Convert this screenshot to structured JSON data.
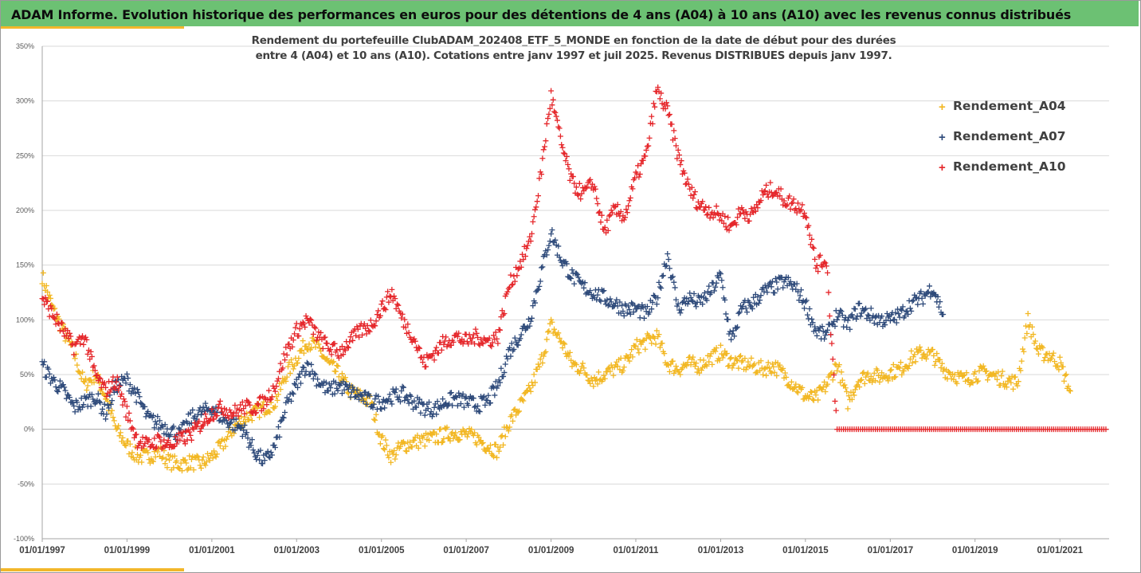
{
  "header": {
    "title": "ADAM Informe. Evolution historique des performances en euros pour des détentions de 4 ans (A04) à 10 ans (A10) avec les revenus connus distribués"
  },
  "colors": {
    "banner": "#6cc173",
    "accent": "#f2b72a",
    "grid": "#d9d9d9",
    "axis": "#a6a6a6"
  },
  "chart_data": {
    "type": "scatter",
    "title_lines": [
      "Rendement du portefeuille ClubADAM_202408_ETF_5_MONDE  en fonction de la date de début pour des durées",
      "entre 4 (A04) et 10 ans (A10). Cotations entre janv 1997 et juil 2025. Revenus DISTRIBUES depuis janv 1997."
    ],
    "xlabel": "",
    "ylabel": "",
    "x_range": [
      "1997-01-01",
      "2022-03-01"
    ],
    "ylim": [
      -100,
      350
    ],
    "y_ticks": [
      -100,
      -50,
      0,
      50,
      100,
      150,
      200,
      250,
      300,
      350
    ],
    "y_tick_labels": [
      "-100%",
      "-50%",
      "0%",
      "50%",
      "100%",
      "150%",
      "200%",
      "250%",
      "300%",
      "350%"
    ],
    "x_ticks": [
      "1997-01-01",
      "1999-01-01",
      "2001-01-01",
      "2003-01-01",
      "2005-01-01",
      "2007-01-01",
      "2009-01-01",
      "2011-01-01",
      "2013-01-01",
      "2015-01-01",
      "2017-01-01",
      "2019-01-01",
      "2021-01-01"
    ],
    "x_tick_labels": [
      "01/01/1997",
      "01/01/1999",
      "01/01/2001",
      "01/01/2003",
      "01/01/2005",
      "01/01/2007",
      "01/01/2009",
      "01/01/2011",
      "01/01/2013",
      "01/01/2015",
      "01/01/2017",
      "01/01/2019",
      "01/01/2021"
    ],
    "grid": true,
    "legend_position": "right",
    "marker": "+",
    "series": [
      {
        "name": "Rendement_A04",
        "color": "#f2b722",
        "points": [
          [
            "1997-01",
            140
          ],
          [
            "1997-04",
            110
          ],
          [
            "1997-07",
            90
          ],
          [
            "1997-10",
            70
          ],
          [
            "1998-01",
            40
          ],
          [
            "1998-04",
            50
          ],
          [
            "1998-07",
            30
          ],
          [
            "1998-10",
            0
          ],
          [
            "1999-01",
            -15
          ],
          [
            "1999-04",
            -25
          ],
          [
            "1999-07",
            -25
          ],
          [
            "1999-10",
            -20
          ],
          [
            "2000-01",
            -30
          ],
          [
            "2000-04",
            -32
          ],
          [
            "2000-07",
            -30
          ],
          [
            "2000-10",
            -32
          ],
          [
            "2001-01",
            -25
          ],
          [
            "2001-04",
            -15
          ],
          [
            "2001-07",
            0
          ],
          [
            "2001-10",
            10
          ],
          [
            "2002-01",
            15
          ],
          [
            "2002-04",
            20
          ],
          [
            "2002-07",
            25
          ],
          [
            "2002-10",
            50
          ],
          [
            "2003-01",
            65
          ],
          [
            "2003-04",
            80
          ],
          [
            "2003-07",
            75
          ],
          [
            "2003-10",
            60
          ],
          [
            "2004-01",
            50
          ],
          [
            "2004-04",
            35
          ],
          [
            "2004-07",
            30
          ],
          [
            "2004-10",
            25
          ],
          [
            "2005-01",
            -10
          ],
          [
            "2005-04",
            -25
          ],
          [
            "2005-07",
            -15
          ],
          [
            "2005-10",
            -12
          ],
          [
            "2006-01",
            -10
          ],
          [
            "2006-04",
            -8
          ],
          [
            "2006-07",
            -5
          ],
          [
            "2006-10",
            -3
          ],
          [
            "2007-01",
            -5
          ],
          [
            "2007-04",
            -8
          ],
          [
            "2007-07",
            -15
          ],
          [
            "2007-10",
            -20
          ],
          [
            "2008-01",
            5
          ],
          [
            "2008-04",
            20
          ],
          [
            "2008-07",
            35
          ],
          [
            "2008-10",
            60
          ],
          [
            "2009-01",
            95
          ],
          [
            "2009-04",
            80
          ],
          [
            "2009-07",
            60
          ],
          [
            "2009-10",
            55
          ],
          [
            "2010-01",
            45
          ],
          [
            "2010-04",
            50
          ],
          [
            "2010-07",
            55
          ],
          [
            "2010-10",
            60
          ],
          [
            "2011-01",
            75
          ],
          [
            "2011-04",
            80
          ],
          [
            "2011-07",
            85
          ],
          [
            "2011-10",
            60
          ],
          [
            "2012-01",
            55
          ],
          [
            "2012-04",
            60
          ],
          [
            "2012-07",
            58
          ],
          [
            "2012-10",
            65
          ],
          [
            "2013-01",
            70
          ],
          [
            "2013-04",
            62
          ],
          [
            "2013-07",
            60
          ],
          [
            "2013-10",
            58
          ],
          [
            "2014-01",
            55
          ],
          [
            "2014-04",
            58
          ],
          [
            "2014-07",
            50
          ],
          [
            "2014-10",
            40
          ],
          [
            "2015-01",
            30
          ],
          [
            "2015-04",
            28
          ],
          [
            "2015-07",
            40
          ],
          [
            "2015-10",
            60
          ],
          [
            "2016-01",
            25
          ],
          [
            "2016-04",
            45
          ],
          [
            "2016-07",
            50
          ],
          [
            "2016-10",
            48
          ],
          [
            "2017-01",
            52
          ],
          [
            "2017-04",
            55
          ],
          [
            "2017-07",
            65
          ],
          [
            "2017-10",
            70
          ],
          [
            "2018-01",
            68
          ],
          [
            "2018-04",
            55
          ],
          [
            "2018-07",
            50
          ],
          [
            "2018-10",
            45
          ],
          [
            "2019-01",
            50
          ],
          [
            "2019-04",
            52
          ],
          [
            "2019-07",
            48
          ],
          [
            "2019-10",
            45
          ],
          [
            "2020-01",
            42
          ],
          [
            "2020-04",
            100
          ],
          [
            "2020-07",
            70
          ],
          [
            "2020-10",
            68
          ],
          [
            "2021-01",
            60
          ],
          [
            "2021-04",
            35
          ]
        ]
      },
      {
        "name": "Rendement_A07",
        "color": "#2e4a7a",
        "points": [
          [
            "1997-01",
            58
          ],
          [
            "1997-04",
            45
          ],
          [
            "1997-07",
            35
          ],
          [
            "1997-10",
            20
          ],
          [
            "1998-01",
            25
          ],
          [
            "1998-04",
            30
          ],
          [
            "1998-07",
            15
          ],
          [
            "1998-10",
            40
          ],
          [
            "1999-01",
            45
          ],
          [
            "1999-04",
            30
          ],
          [
            "1999-07",
            10
          ],
          [
            "1999-10",
            5
          ],
          [
            "2000-01",
            0
          ],
          [
            "2000-04",
            -5
          ],
          [
            "2000-07",
            10
          ],
          [
            "2000-10",
            15
          ],
          [
            "2001-01",
            20
          ],
          [
            "2001-04",
            10
          ],
          [
            "2001-07",
            5
          ],
          [
            "2001-10",
            0
          ],
          [
            "2002-01",
            -20
          ],
          [
            "2002-04",
            -30
          ],
          [
            "2002-07",
            -15
          ],
          [
            "2002-10",
            20
          ],
          [
            "2003-01",
            40
          ],
          [
            "2003-04",
            60
          ],
          [
            "2003-07",
            45
          ],
          [
            "2003-10",
            35
          ],
          [
            "2004-01",
            40
          ],
          [
            "2004-04",
            35
          ],
          [
            "2004-07",
            30
          ],
          [
            "2004-10",
            25
          ],
          [
            "2005-01",
            25
          ],
          [
            "2005-04",
            30
          ],
          [
            "2005-07",
            32
          ],
          [
            "2005-10",
            25
          ],
          [
            "2006-01",
            20
          ],
          [
            "2006-04",
            18
          ],
          [
            "2006-07",
            25
          ],
          [
            "2006-10",
            28
          ],
          [
            "2007-01",
            25
          ],
          [
            "2007-04",
            22
          ],
          [
            "2007-07",
            25
          ],
          [
            "2007-10",
            40
          ],
          [
            "2008-01",
            70
          ],
          [
            "2008-04",
            85
          ],
          [
            "2008-07",
            100
          ],
          [
            "2008-10",
            140
          ],
          [
            "2009-01",
            180
          ],
          [
            "2009-04",
            155
          ],
          [
            "2009-07",
            140
          ],
          [
            "2009-10",
            130
          ],
          [
            "2010-01",
            125
          ],
          [
            "2010-04",
            120
          ],
          [
            "2010-07",
            115
          ],
          [
            "2010-10",
            110
          ],
          [
            "2011-01",
            110
          ],
          [
            "2011-04",
            105
          ],
          [
            "2011-07",
            120
          ],
          [
            "2011-10",
            160
          ],
          [
            "2012-01",
            110
          ],
          [
            "2012-04",
            120
          ],
          [
            "2012-07",
            115
          ],
          [
            "2012-10",
            125
          ],
          [
            "2013-01",
            140
          ],
          [
            "2013-04",
            80
          ],
          [
            "2013-07",
            110
          ],
          [
            "2013-10",
            115
          ],
          [
            "2014-01",
            125
          ],
          [
            "2014-04",
            130
          ],
          [
            "2014-07",
            135
          ],
          [
            "2014-10",
            130
          ],
          [
            "2015-01",
            115
          ],
          [
            "2015-04",
            90
          ],
          [
            "2015-07",
            85
          ],
          [
            "2015-10",
            105
          ],
          [
            "2016-01",
            95
          ],
          [
            "2016-04",
            110
          ],
          [
            "2016-07",
            105
          ],
          [
            "2016-10",
            100
          ],
          [
            "2017-01",
            100
          ],
          [
            "2017-04",
            105
          ],
          [
            "2017-07",
            115
          ],
          [
            "2017-10",
            120
          ],
          [
            "2018-01",
            130
          ],
          [
            "2018-04",
            105
          ]
        ]
      },
      {
        "name": "Rendement_A10",
        "color": "#e5262a",
        "points": [
          [
            "1997-01",
            120
          ],
          [
            "1997-04",
            105
          ],
          [
            "1997-07",
            90
          ],
          [
            "1997-10",
            75
          ],
          [
            "1998-01",
            85
          ],
          [
            "1998-04",
            50
          ],
          [
            "1998-07",
            35
          ],
          [
            "1998-10",
            45
          ],
          [
            "1999-01",
            15
          ],
          [
            "1999-04",
            -10
          ],
          [
            "1999-07",
            -15
          ],
          [
            "1999-10",
            -10
          ],
          [
            "2000-01",
            -15
          ],
          [
            "2000-04",
            -10
          ],
          [
            "2000-07",
            -5
          ],
          [
            "2000-10",
            5
          ],
          [
            "2001-01",
            15
          ],
          [
            "2001-04",
            20
          ],
          [
            "2001-07",
            15
          ],
          [
            "2001-10",
            20
          ],
          [
            "2002-01",
            20
          ],
          [
            "2002-04",
            25
          ],
          [
            "2002-07",
            40
          ],
          [
            "2002-10",
            70
          ],
          [
            "2003-01",
            90
          ],
          [
            "2003-04",
            100
          ],
          [
            "2003-07",
            85
          ],
          [
            "2003-10",
            75
          ],
          [
            "2004-01",
            70
          ],
          [
            "2004-04",
            80
          ],
          [
            "2004-07",
            90
          ],
          [
            "2004-10",
            95
          ],
          [
            "2005-01",
            110
          ],
          [
            "2005-04",
            125
          ],
          [
            "2005-07",
            100
          ],
          [
            "2005-10",
            85
          ],
          [
            "2006-01",
            60
          ],
          [
            "2006-04",
            70
          ],
          [
            "2006-07",
            80
          ],
          [
            "2006-10",
            85
          ],
          [
            "2007-01",
            80
          ],
          [
            "2007-04",
            85
          ],
          [
            "2007-07",
            80
          ],
          [
            "2007-10",
            85
          ],
          [
            "2008-01",
            130
          ],
          [
            "2008-04",
            150
          ],
          [
            "2008-07",
            170
          ],
          [
            "2008-10",
            230
          ],
          [
            "2009-01",
            305
          ],
          [
            "2009-04",
            260
          ],
          [
            "2009-07",
            225
          ],
          [
            "2009-10",
            215
          ],
          [
            "2010-01",
            225
          ],
          [
            "2010-04",
            180
          ],
          [
            "2010-07",
            200
          ],
          [
            "2010-10",
            195
          ],
          [
            "2011-01",
            230
          ],
          [
            "2011-04",
            250
          ],
          [
            "2011-07",
            310
          ],
          [
            "2011-10",
            290
          ],
          [
            "2012-01",
            250
          ],
          [
            "2012-04",
            220
          ],
          [
            "2012-07",
            205
          ],
          [
            "2012-10",
            200
          ],
          [
            "2013-01",
            195
          ],
          [
            "2013-04",
            185
          ],
          [
            "2013-07",
            200
          ],
          [
            "2013-10",
            195
          ],
          [
            "2014-01",
            215
          ],
          [
            "2014-04",
            220
          ],
          [
            "2014-07",
            210
          ],
          [
            "2014-10",
            205
          ],
          [
            "2015-01",
            200
          ],
          [
            "2015-04",
            150
          ],
          [
            "2015-07",
            155
          ],
          [
            "2015-10",
            0
          ],
          [
            "2017-01",
            0
          ],
          [
            "2019-01",
            0
          ],
          [
            "2021-01",
            0
          ],
          [
            "2022-02",
            0
          ]
        ]
      }
    ]
  }
}
